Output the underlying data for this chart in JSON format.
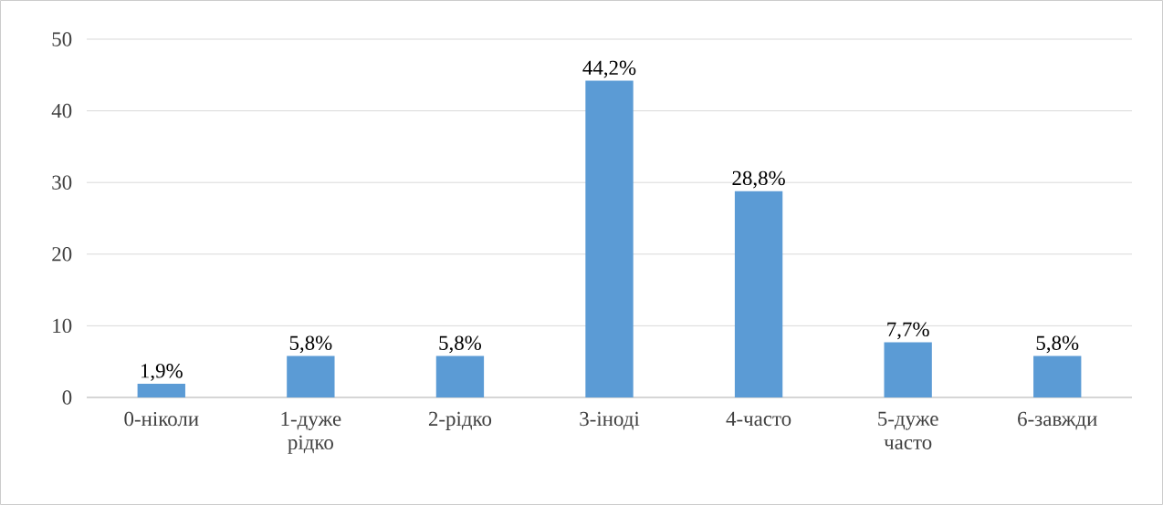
{
  "chart_data": {
    "type": "bar",
    "categories": [
      "0-ніколи",
      "1-дуже рідко",
      "2-рідко",
      "3-іноді",
      "4-часто",
      "5-дуже часто",
      "6-завжди"
    ],
    "values": [
      1.9,
      5.8,
      5.8,
      44.2,
      28.8,
      7.7,
      5.8
    ],
    "value_labels": [
      "1,9%",
      "5,8%",
      "5,8%",
      "44,2%",
      "28,8%",
      "7,7%",
      "5,8%"
    ],
    "color": "#5b9bd5",
    "ylim": [
      0,
      50
    ],
    "yticks": [
      0,
      10,
      20,
      30,
      40,
      50
    ],
    "grid": "y"
  }
}
